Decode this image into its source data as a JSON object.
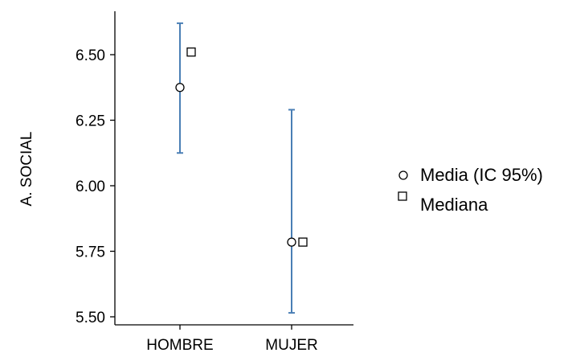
{
  "chart_data": {
    "type": "scatter",
    "categories": [
      "HOMBRE",
      "MUJER"
    ],
    "ylabel": "A. SOCIAL",
    "xlabel": "",
    "ylim": [
      5.5,
      6.65
    ],
    "yticks": [
      5.5,
      5.75,
      6.0,
      6.25,
      6.5
    ],
    "ytick_labels": [
      "5.50",
      "5.75",
      "6.00",
      "6.25",
      "6.50"
    ],
    "grid": false,
    "legend_position": "right",
    "ci_color": "#4a7fb5",
    "series": [
      {
        "name": "Media (IC 95%)",
        "marker": "circle",
        "values": [
          6.375,
          5.785
        ],
        "ci_lower": [
          6.125,
          5.515
        ],
        "ci_upper": [
          6.62,
          6.29
        ]
      },
      {
        "name": "Mediana",
        "marker": "square",
        "values": [
          6.51,
          5.785
        ]
      }
    ]
  }
}
